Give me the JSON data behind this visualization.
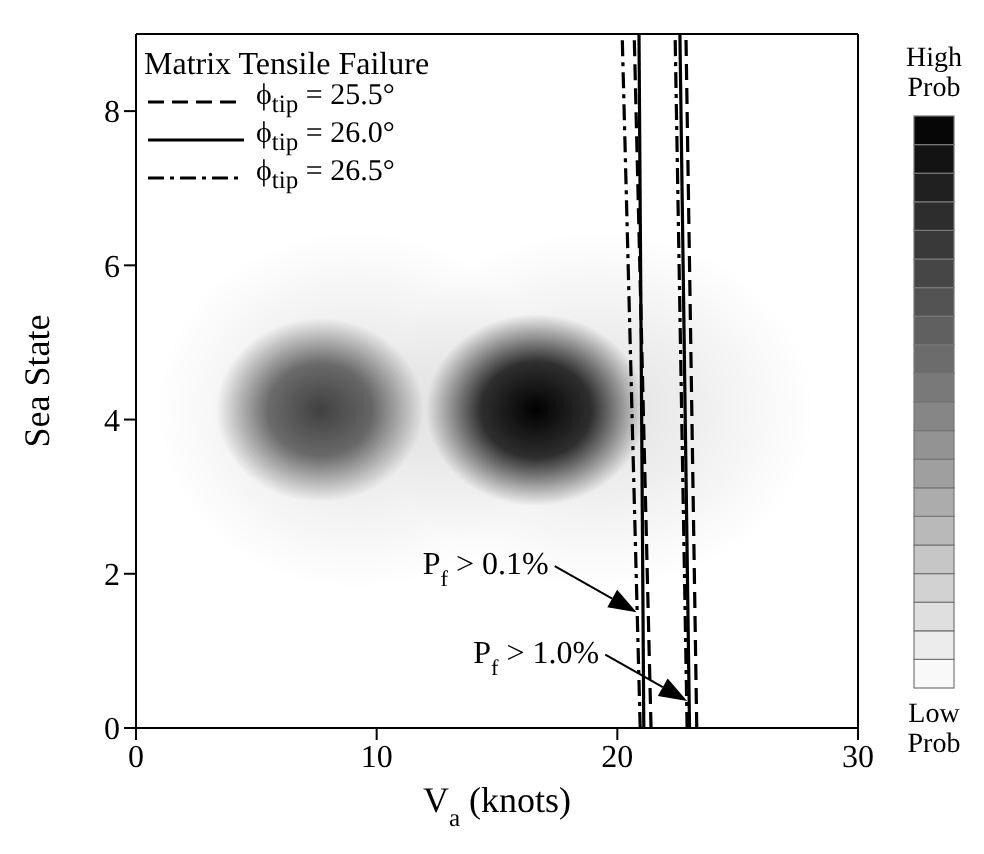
{
  "chart_data": {
    "type": "line",
    "xlabel": "V$_{a}$ (knots)",
    "ylabel": "Sea State",
    "legend_title": "Matrix Tensile Failure",
    "legend": "top left",
    "xlim": [
      0,
      30
    ],
    "xticks": [
      0,
      10,
      20,
      30
    ],
    "ylim": [
      0,
      9
    ],
    "yticks": [
      0,
      2,
      4,
      6,
      8
    ],
    "series": [
      {
        "name": "ϕ$_{tip}$ = 25.5°",
        "color": "#000000",
        "line_style": "dashed",
        "x": [
          21.4,
          20.7
        ],
        "values": [
          0,
          9
        ]
      },
      {
        "name": "ϕ$_{tip}$ = 26.0°",
        "color": "#000000",
        "line_style": "solid",
        "x": [
          21.1,
          20.9
        ],
        "values": [
          0,
          9
        ]
      },
      {
        "name": "ϕ$_{tip}$ = 26.5°",
        "color": "#000000",
        "line_style": "dashdot",
        "x": [
          20.95,
          20.2
        ],
        "values": [
          0,
          9
        ]
      },
      {
        "color": "#000000",
        "line_style": "dashed",
        "x": [
          23.3,
          22.85
        ],
        "values": [
          0,
          9
        ]
      },
      {
        "color": "#000000",
        "line_style": "solid",
        "x": [
          23.0,
          22.6
        ],
        "values": [
          0,
          9
        ]
      },
      {
        "color": "#000000",
        "line_style": "dashdot",
        "x": [
          22.9,
          22.4
        ],
        "values": [
          0,
          9
        ]
      }
    ],
    "annotations": [
      {
        "text": "P$_{f}$ > 0.1%",
        "x": 20.8,
        "y": 1.5
      },
      {
        "text": "P$_{f}$ > 1.0%",
        "x": 22.9,
        "y": 0.35
      },
      "High Prob",
      "Low Prob"
    ]
  }
}
